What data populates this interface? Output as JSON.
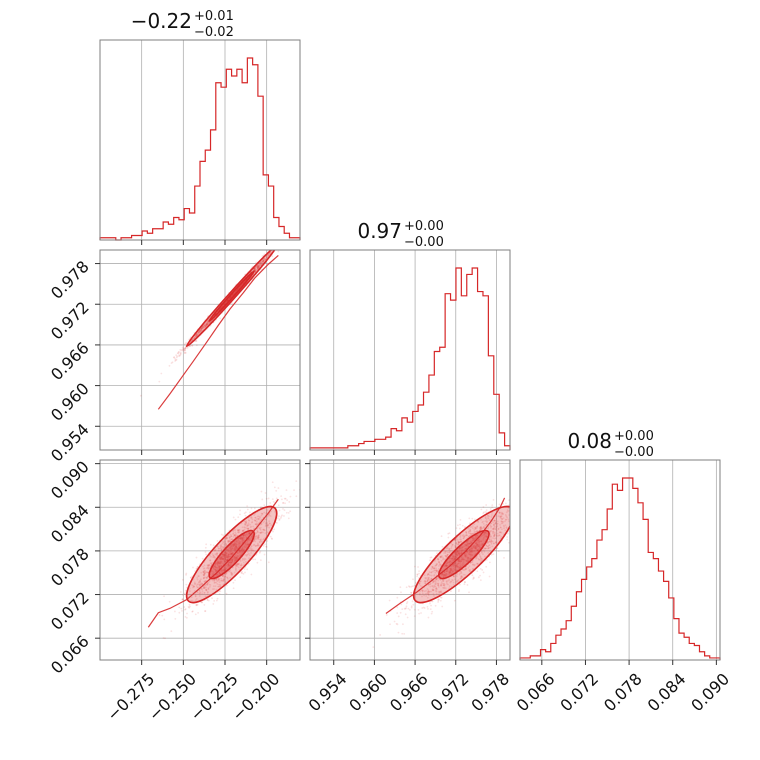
{
  "chart_data": {
    "type": "corner",
    "color": "#d62728",
    "parameters": [
      {
        "title_main": "−0.22",
        "title_plus": "+0.01",
        "title_minus": "−0.02",
        "range": [
          -0.3,
          -0.18
        ],
        "ticks": [
          -0.275,
          -0.25,
          -0.225,
          -0.2
        ],
        "tick_labels": [
          "−0.275",
          "−0.250",
          "−0.225",
          "−0.200"
        ],
        "hist_values": [
          1,
          1,
          1,
          0,
          1,
          1,
          2,
          2,
          4,
          3,
          5,
          5,
          8,
          7,
          10,
          9,
          14,
          12,
          24,
          35,
          40,
          49,
          70,
          68,
          76,
          73,
          76,
          70,
          81,
          78,
          64,
          29,
          24,
          10,
          6,
          3,
          1,
          1
        ]
      },
      {
        "title_main": "0.97",
        "title_plus": "+0.00",
        "title_minus": "−0.00",
        "range": [
          0.9505,
          0.98
        ],
        "ticks": [
          0.954,
          0.96,
          0.966,
          0.972,
          0.978
        ],
        "tick_labels": [
          "0.954",
          "0.960",
          "0.966",
          "0.972",
          "0.978"
        ],
        "hist_values": [
          1,
          1,
          1,
          1,
          1,
          1,
          1,
          2,
          2,
          3,
          4,
          4,
          5,
          5,
          6,
          10,
          9,
          15,
          13,
          18,
          21,
          27,
          35,
          46,
          48,
          73,
          70,
          85,
          72,
          82,
          85,
          74,
          72,
          44,
          26,
          8,
          2
        ]
      },
      {
        "title_main": "0.08",
        "title_plus": "+0.00",
        "title_minus": "−0.00",
        "range": [
          0.063,
          0.0905
        ],
        "ticks": [
          0.066,
          0.072,
          0.078,
          0.084,
          0.09
        ],
        "tick_labels": [
          "0.066",
          "0.072",
          "0.078",
          "0.084",
          "0.090"
        ],
        "hist_values": [
          1,
          1,
          2,
          2,
          5,
          4,
          8,
          12,
          15,
          19,
          26,
          33,
          39,
          45,
          49,
          58,
          63,
          73,
          85,
          82,
          88,
          88,
          83,
          76,
          68,
          52,
          49,
          43,
          38,
          30,
          20,
          13,
          11,
          8,
          7,
          4,
          2,
          1,
          1
        ]
      }
    ],
    "pairs": [
      {
        "x_param": 0,
        "y_param": 1,
        "center": [
          -0.221,
          0.9732
        ],
        "sd": [
          0.0135,
          0.0037
        ],
        "correlation": 0.995,
        "points": [
          [
            -0.265,
            0.9565
          ],
          [
            -0.258,
            0.9588
          ],
          [
            -0.251,
            0.9612
          ],
          [
            -0.244,
            0.9636
          ],
          [
            -0.236,
            0.9664
          ],
          [
            -0.229,
            0.9689
          ],
          [
            -0.222,
            0.9713
          ],
          [
            -0.214,
            0.9737
          ],
          [
            -0.207,
            0.9759
          ],
          [
            -0.199,
            0.9779
          ],
          [
            -0.193,
            0.9792
          ]
        ]
      },
      {
        "x_param": 0,
        "y_param": 2,
        "center": [
          -0.221,
          0.0775
        ],
        "sd": [
          0.0135,
          0.0033
        ],
        "correlation": 0.86,
        "points": [
          [
            -0.271,
            0.0675
          ],
          [
            -0.265,
            0.0695
          ],
          [
            -0.258,
            0.0701
          ],
          [
            -0.248,
            0.0713
          ],
          [
            -0.239,
            0.0731
          ],
          [
            -0.229,
            0.0752
          ],
          [
            -0.221,
            0.0771
          ],
          [
            -0.213,
            0.0793
          ],
          [
            -0.206,
            0.0812
          ],
          [
            -0.199,
            0.0832
          ],
          [
            -0.193,
            0.0851
          ]
        ]
      },
      {
        "x_param": 1,
        "y_param": 2,
        "center": [
          0.9732,
          0.0775
        ],
        "sd": [
          0.0037,
          0.0033
        ],
        "correlation": 0.86,
        "points": [
          [
            0.9617,
            0.0694
          ],
          [
            0.9638,
            0.0708
          ],
          [
            0.9662,
            0.0723
          ],
          [
            0.9687,
            0.0741
          ],
          [
            0.9711,
            0.0759
          ],
          [
            0.9734,
            0.0779
          ],
          [
            0.9756,
            0.0801
          ],
          [
            0.9773,
            0.0822
          ],
          [
            0.9786,
            0.0841
          ],
          [
            0.9792,
            0.0853
          ]
        ]
      }
    ],
    "grid": true,
    "legend": "none"
  }
}
